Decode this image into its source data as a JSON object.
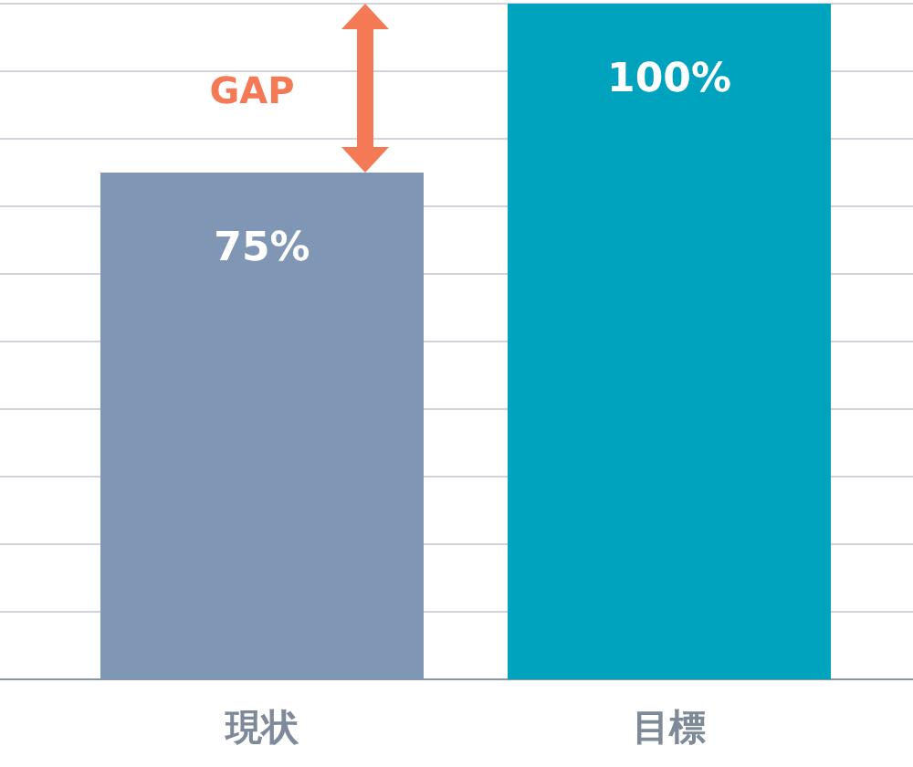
{
  "chart_data": {
    "type": "bar",
    "categories": [
      "現状",
      "目標"
    ],
    "values": [
      75,
      100
    ],
    "colors": [
      "#7f97b5",
      "#00a3bd"
    ],
    "value_labels": [
      "75%",
      "100%"
    ],
    "ylim": [
      0,
      100
    ],
    "yticks": [
      {
        "value": 0,
        "label": null
      },
      {
        "value": 10,
        "label": null
      },
      {
        "value": 20,
        "label": null
      },
      {
        "value": 30,
        "label": null
      },
      {
        "value": 40,
        "label": null
      },
      {
        "value": 50,
        "label": null
      },
      {
        "value": 60,
        "label": null
      },
      {
        "value": 70,
        "label": null
      },
      {
        "value": 80,
        "label": null
      },
      {
        "value": 90,
        "label": null
      },
      {
        "value": 100,
        "label": null
      }
    ],
    "tick_labels": "x",
    "grid": "y",
    "annotations": [
      "GAP"
    ]
  }
}
